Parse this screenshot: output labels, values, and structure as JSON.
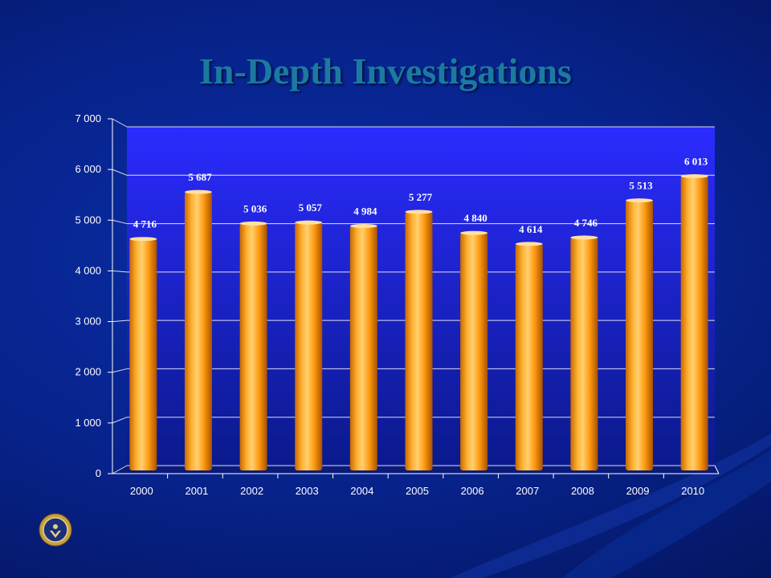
{
  "title": "In-Depth Investigations",
  "chart_data": {
    "type": "bar",
    "title": "",
    "categories": [
      "2000",
      "2001",
      "2002",
      "2003",
      "2004",
      "2005",
      "2006",
      "2007",
      "2008",
      "2009",
      "2010"
    ],
    "values": [
      4716,
      5687,
      5036,
      5057,
      4984,
      5277,
      4840,
      4614,
      4746,
      5513,
      6013
    ],
    "value_labels": [
      "4 716",
      "5 687",
      "5 036",
      "5 057",
      "4 984",
      "5 277",
      "4 840",
      "4 614",
      "4 746",
      "5 513",
      "6 013"
    ],
    "y_ticks": [
      0,
      1000,
      2000,
      3000,
      4000,
      5000,
      6000,
      7000
    ],
    "y_tick_labels": [
      "0",
      "1 000",
      "2 000",
      "3 000",
      "4 000",
      "5 000",
      "6 000",
      "7 000"
    ],
    "ylim": [
      0,
      7000
    ],
    "xlabel": "",
    "ylabel": "",
    "grid": true,
    "legend": "none",
    "colors": {
      "bar_light": "#ffcc55",
      "bar_mid": "#ff9900",
      "bar_dark": "#b35c00",
      "plot_top": "#2a2aff",
      "plot_bottom": "#0a1a8c",
      "title": "#1c7aa0"
    }
  },
  "logo": {
    "icon": "agency-seal-icon"
  }
}
